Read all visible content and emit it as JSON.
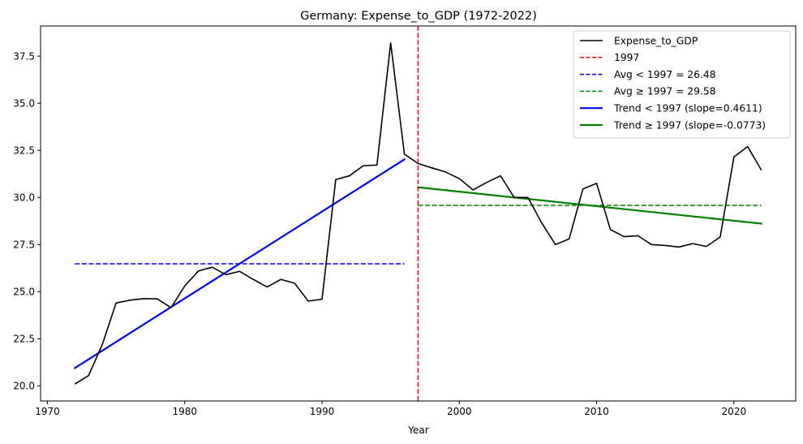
{
  "chart_data": {
    "type": "line",
    "title": "Germany: Expense_to_GDP (1972-2022)",
    "xlabel": "Year",
    "ylabel": "",
    "xlim": [
      1969.5,
      2024.5
    ],
    "ylim": [
      19.2,
      39.1
    ],
    "xticks": [
      1970,
      1980,
      1990,
      2000,
      2010,
      2020
    ],
    "yticks": [
      20.0,
      22.5,
      25.0,
      27.5,
      30.0,
      32.5,
      35.0,
      37.5
    ],
    "ytick_labels": [
      "20.0",
      "22.5",
      "25.0",
      "27.5",
      "30.0",
      "32.5",
      "35.0",
      "37.5"
    ],
    "grid": false,
    "legend_position": "top-right",
    "series": [
      {
        "name": "Expense_to_GDP",
        "color": "#000000",
        "style": "solid",
        "x": [
          1972,
          1973,
          1974,
          1975,
          1976,
          1977,
          1978,
          1979,
          1980,
          1981,
          1982,
          1983,
          1984,
          1985,
          1986,
          1987,
          1988,
          1989,
          1990,
          1991,
          1992,
          1993,
          1994,
          1995,
          1996,
          1997,
          1998,
          1999,
          2000,
          2001,
          2002,
          2003,
          2004,
          2005,
          2006,
          2007,
          2008,
          2009,
          2010,
          2011,
          2012,
          2013,
          2014,
          2015,
          2016,
          2017,
          2018,
          2019,
          2020,
          2021,
          2022
        ],
        "y": [
          20.1,
          20.55,
          22.2,
          24.4,
          24.55,
          24.63,
          24.62,
          24.15,
          25.3,
          26.1,
          26.3,
          25.9,
          26.08,
          25.65,
          25.25,
          25.65,
          25.45,
          24.5,
          24.6,
          30.95,
          31.15,
          31.68,
          31.72,
          38.2,
          32.3,
          31.8,
          31.57,
          31.35,
          31.0,
          30.4,
          30.8,
          31.15,
          30.0,
          30.0,
          28.65,
          27.5,
          27.8,
          30.45,
          30.75,
          28.3,
          27.92,
          27.97,
          27.5,
          27.45,
          27.37,
          27.55,
          27.4,
          27.9,
          32.15,
          32.7,
          31.45
        ]
      }
    ],
    "reference_lines": [
      {
        "name": "1997",
        "orientation": "vertical",
        "x": 1997,
        "color": "#ff0000",
        "style": "dashed"
      },
      {
        "name": "Avg < 1997 = 26.48",
        "orientation": "horizontal",
        "y": 26.48,
        "x_range": [
          1972,
          1996
        ],
        "color": "#0000ff",
        "style": "dashed"
      },
      {
        "name": "Avg ≥ 1997 = 29.58",
        "orientation": "horizontal",
        "y": 29.58,
        "x_range": [
          1997,
          2022
        ],
        "color": "#008000",
        "style": "dashed"
      }
    ],
    "trend_lines": [
      {
        "name": "Trend < 1997 (slope=0.4611)",
        "x_range": [
          1972,
          1996
        ],
        "y_range": [
          20.95,
          32.02
        ],
        "slope": 0.4611,
        "color": "#0000ff"
      },
      {
        "name": "Trend ≥ 1997 (slope=-0.0773)",
        "x_range": [
          1997,
          2022
        ],
        "y_range": [
          30.54,
          28.61
        ],
        "slope": -0.0773,
        "color": "#008000"
      }
    ],
    "legend": [
      {
        "label": "Expense_to_GDP",
        "color": "#000000",
        "style": "solid"
      },
      {
        "label": "1997",
        "color": "#ff0000",
        "style": "dashed"
      },
      {
        "label": "Avg < 1997 = 26.48",
        "color": "#0000ff",
        "style": "dashed"
      },
      {
        "label": "Avg ≥ 1997 = 29.58",
        "color": "#008000",
        "style": "dashed"
      },
      {
        "label": "Trend < 1997 (slope=0.4611)",
        "color": "#0000ff",
        "style": "thick"
      },
      {
        "label": "Trend ≥ 1997 (slope=-0.0773)",
        "color": "#008000",
        "style": "thick"
      }
    ]
  }
}
